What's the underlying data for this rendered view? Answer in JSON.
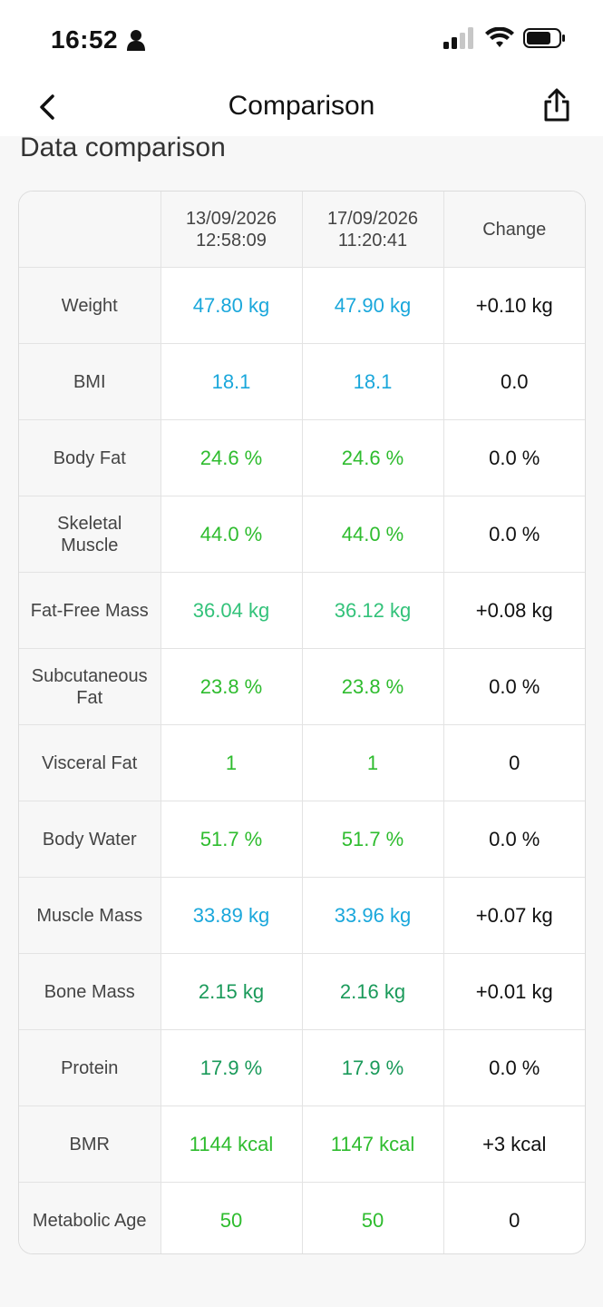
{
  "status_bar": {
    "time": "16:52",
    "icons": [
      "person-icon",
      "signal-icon",
      "wifi-icon",
      "battery-icon"
    ]
  },
  "nav": {
    "title": "Comparison",
    "back_icon": "chevron-left-icon",
    "share_icon": "share-icon"
  },
  "section_title": "Data comparison",
  "table": {
    "headers": [
      "",
      "13/09/2026\n12:58:09",
      "17/09/2026\n11:20:41",
      "Change"
    ],
    "rows": [
      {
        "label": "Weight",
        "a": "47.80 kg",
        "b": "47.90 kg",
        "change": "+0.10 kg",
        "color": "#1aa7db"
      },
      {
        "label": "BMI",
        "a": "18.1",
        "b": "18.1",
        "change": "0.0",
        "color": "#1aa7db"
      },
      {
        "label": "Body Fat",
        "a": "24.6 %",
        "b": "24.6 %",
        "change": "0.0 %",
        "color": "#2ebc2e"
      },
      {
        "label": "Skeletal\nMuscle",
        "a": "44.0 %",
        "b": "44.0 %",
        "change": "0.0 %",
        "color": "#2ebc2e"
      },
      {
        "label": "Fat-Free Mass",
        "a": "36.04 kg",
        "b": "36.12 kg",
        "change": "+0.08 kg",
        "color": "#33c27a"
      },
      {
        "label": "Subcutaneous\nFat",
        "a": "23.8 %",
        "b": "23.8 %",
        "change": "0.0 %",
        "color": "#2ebc2e"
      },
      {
        "label": "Visceral Fat",
        "a": "1",
        "b": "1",
        "change": "0",
        "color": "#2ebc2e"
      },
      {
        "label": "Body Water",
        "a": "51.7 %",
        "b": "51.7 %",
        "change": "0.0 %",
        "color": "#2ebc2e"
      },
      {
        "label": "Muscle Mass",
        "a": "33.89 kg",
        "b": "33.96 kg",
        "change": "+0.07 kg",
        "color": "#1aa7db"
      },
      {
        "label": "Bone Mass",
        "a": "2.15 kg",
        "b": "2.16 kg",
        "change": "+0.01 kg",
        "color": "#1a9a5a"
      },
      {
        "label": "Protein",
        "a": "17.9 %",
        "b": "17.9 %",
        "change": "0.0 %",
        "color": "#1a9a5a"
      },
      {
        "label": "BMR",
        "a": "1144 kcal",
        "b": "1147 kcal",
        "change": "+3 kcal",
        "color": "#2ebc2e"
      },
      {
        "label": "Metabolic Age",
        "a": "50",
        "b": "50",
        "change": "0",
        "color": "#2ebc2e"
      }
    ]
  }
}
